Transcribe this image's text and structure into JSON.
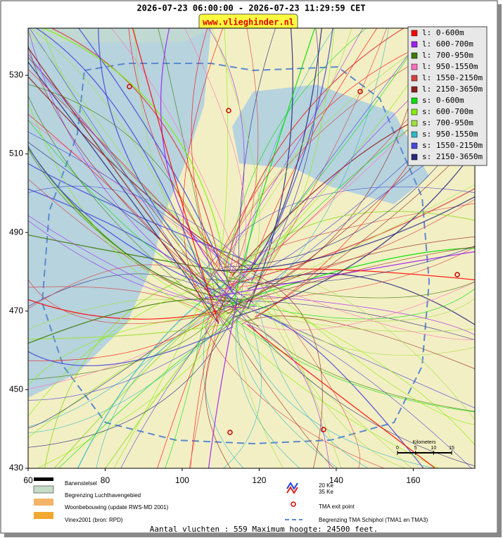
{
  "header": {
    "title": "2026-07-23 06:00:00 - 2026-07-23 11:29:59 CET",
    "site": "www.vlieghinder.nl"
  },
  "map": {
    "xlim": [
      60,
      176
    ],
    "ylim": [
      430,
      542
    ],
    "xticks": [
      60,
      80,
      100,
      120,
      140,
      160
    ],
    "yticks": [
      430,
      450,
      470,
      490,
      510,
      530
    ],
    "legend": [
      {
        "label": "l: 0-600m",
        "color": "#ff0000"
      },
      {
        "label": "l: 600-700m",
        "color": "#a020f0"
      },
      {
        "label": "l: 700-950m",
        "color": "#3c7a00"
      },
      {
        "label": "l: 950-1550m",
        "color": "#ff70c0"
      },
      {
        "label": "l: 1550-2150m",
        "color": "#d84040"
      },
      {
        "label": "l: 2150-3650m",
        "color": "#902020"
      },
      {
        "label": "s: 0-600m",
        "color": "#00e000"
      },
      {
        "label": "s: 600-700m",
        "color": "#80f000"
      },
      {
        "label": "s: 700-950m",
        "color": "#a0e040"
      },
      {
        "label": "s: 950-1550m",
        "color": "#30b8c8"
      },
      {
        "label": "s: 1550-2150m",
        "color": "#4848d8"
      },
      {
        "label": "s: 2150-3650m",
        "color": "#282880"
      }
    ]
  },
  "scale_bar": {
    "title": "Kilometers",
    "ticks": [
      0,
      5,
      10,
      15
    ]
  },
  "key": {
    "runways": "Banenstelsel",
    "airport_boundary": "Begrenzing Luchthavengebied",
    "housing": "Woonbebouwing (update RWS-MD 2001)",
    "vinex": "Vinex2001 (bron: RPD)",
    "ke20": "20 Ke",
    "ke35": "35 Ke",
    "exit": "TMA exit point",
    "tma": "Begrenzing TMA Schiphol  (TMA1 en TMA3)"
  },
  "footer": "Aantal vluchten : 559 Maximum hoogte: 24500 feet."
}
